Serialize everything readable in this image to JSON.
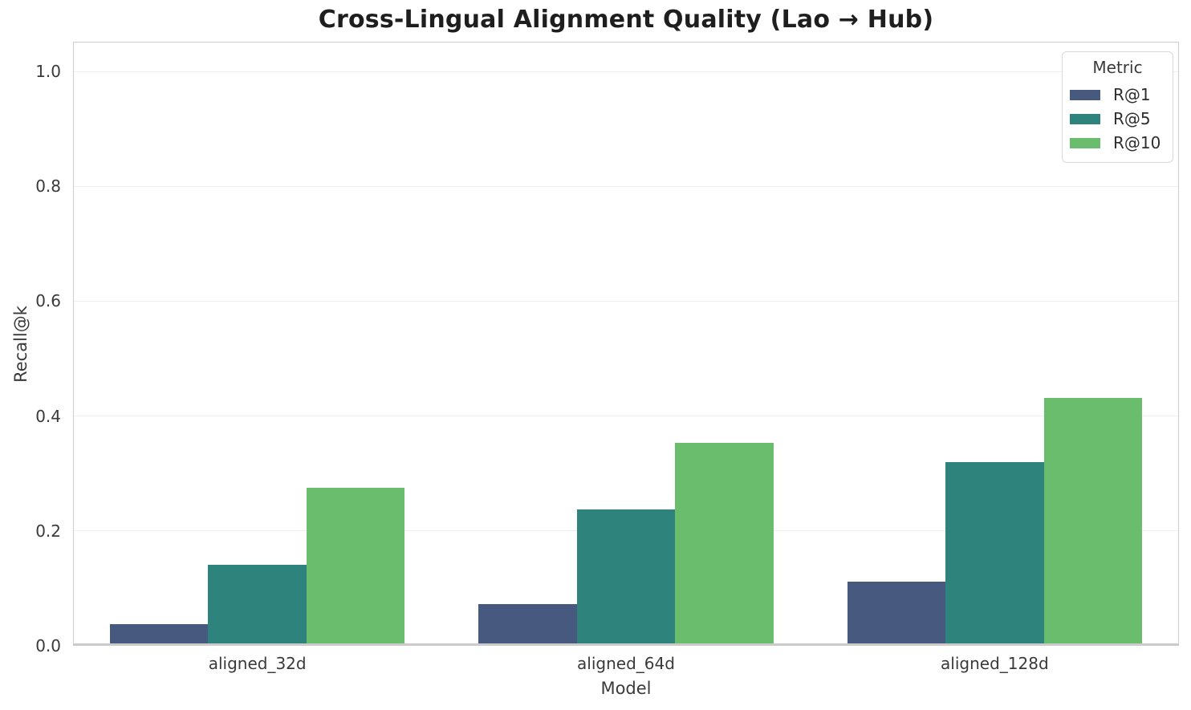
{
  "chart_data": {
    "type": "bar",
    "title": "Cross-Lingual Alignment Quality (Lao → Hub)",
    "xlabel": "Model",
    "ylabel": "Recall@k",
    "categories": [
      "aligned_32d",
      "aligned_64d",
      "aligned_128d"
    ],
    "series": [
      {
        "name": "R@1",
        "color": "#47597e",
        "values": [
          0.038,
          0.073,
          0.112
        ]
      },
      {
        "name": "R@5",
        "color": "#2e837d",
        "values": [
          0.141,
          0.237,
          0.32
        ]
      },
      {
        "name": "R@10",
        "color": "#69bd6c",
        "values": [
          0.275,
          0.353,
          0.432
        ]
      }
    ],
    "legend": {
      "title": "Metric",
      "position": "upper right"
    },
    "ylim": [
      0,
      1.05
    ],
    "yticks": [
      "0.0",
      "0.2",
      "0.4",
      "0.6",
      "0.8",
      "1.0"
    ],
    "grid": true,
    "grid_axis": "y",
    "bar_group_width": 0.8
  }
}
